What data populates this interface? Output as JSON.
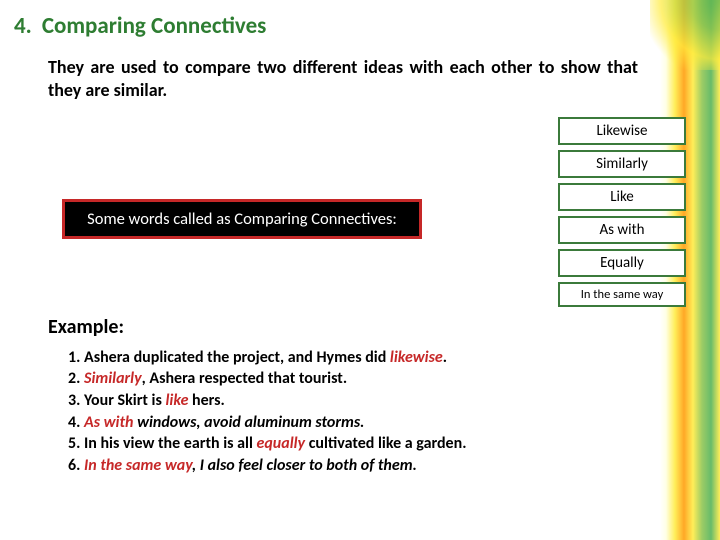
{
  "colors": {
    "title": "#2e7d32",
    "highlight": "#c62828",
    "box_border": "#3b7a3b",
    "black_box_bg": "#000000",
    "black_box_border": "#c62828",
    "text": "#000000",
    "background": "#ffffff"
  },
  "typography": {
    "title_fontsize": 23,
    "intro_fontsize": 18,
    "blackbox_fontsize": 16.5,
    "wordbox_fontsize": 15,
    "wordbox_small_fontsize": 12.5,
    "example_h_fontsize": 20,
    "example_fontsize": 16,
    "font_family": "Calibri"
  },
  "header": {
    "number": "4.",
    "title": "Comparing Connectives"
  },
  "intro": "They are used to compare two different ideas with each other to show that they are similar.",
  "black_box": "Some words called as Comparing Connectives:",
  "words": {
    "items": [
      {
        "label": "Likewise"
      },
      {
        "label": "Similarly"
      },
      {
        "label": "Like"
      },
      {
        "label": "As with"
      },
      {
        "label": "Equally"
      },
      {
        "label": "In the same way"
      }
    ]
  },
  "example_heading": "Example:",
  "examples": {
    "1": {
      "pre": "Ashera duplicated the project, and Hymes did ",
      "hl": "likewise",
      "post": "."
    },
    "2": {
      "hl": "Similarly",
      "post": ", Ashera respected that tourist."
    },
    "3": {
      "pre": "Your Skirt is ",
      "hl": "like",
      "post": " hers."
    },
    "4": {
      "hl": "As with",
      "post": " windows, avoid aluminum storms."
    },
    "5": {
      "pre": "In his view the earth is all ",
      "hl": "equally",
      "post": " cultivated like a garden."
    },
    "6": {
      "hl": "In the same way",
      "post": ", I also feel closer to both of them."
    }
  }
}
